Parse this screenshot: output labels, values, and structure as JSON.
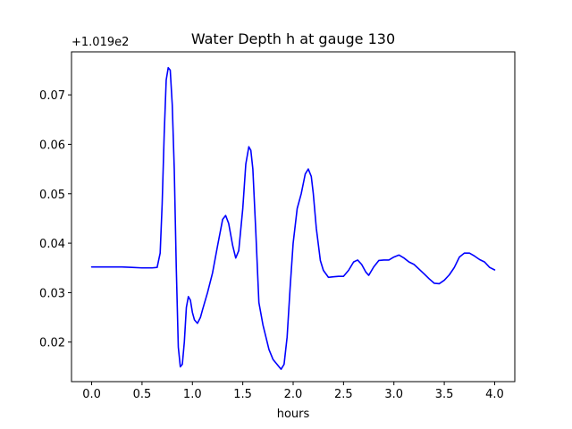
{
  "chart_data": {
    "type": "line",
    "title": "Water Depth h at gauge 130",
    "xlabel": "hours",
    "ylabel": "",
    "y_offset_label": "+1.019e2",
    "xlim": [
      -0.2,
      4.2
    ],
    "ylim": [
      0.012,
      0.0787
    ],
    "x_ticks": [
      0.0,
      0.5,
      1.0,
      1.5,
      2.0,
      2.5,
      3.0,
      3.5,
      4.0
    ],
    "x_tick_labels": [
      "0.0",
      "0.5",
      "1.0",
      "1.5",
      "2.0",
      "2.5",
      "3.0",
      "3.5",
      "4.0"
    ],
    "y_ticks": [
      0.02,
      0.03,
      0.04,
      0.05,
      0.06,
      0.07
    ],
    "y_tick_labels": [
      "0.02",
      "0.03",
      "0.04",
      "0.05",
      "0.06",
      "0.07"
    ],
    "grid": false,
    "series": [
      {
        "color": "#0000ff",
        "x": [
          0.0,
          0.1,
          0.2,
          0.3,
          0.4,
          0.5,
          0.6,
          0.65,
          0.68,
          0.7,
          0.72,
          0.74,
          0.76,
          0.78,
          0.8,
          0.82,
          0.84,
          0.86,
          0.88,
          0.9,
          0.92,
          0.94,
          0.96,
          0.98,
          1.0,
          1.02,
          1.05,
          1.08,
          1.1,
          1.15,
          1.2,
          1.25,
          1.3,
          1.33,
          1.36,
          1.4,
          1.43,
          1.46,
          1.5,
          1.53,
          1.56,
          1.58,
          1.6,
          1.63,
          1.66,
          1.7,
          1.73,
          1.76,
          1.8,
          1.84,
          1.88,
          1.91,
          1.94,
          1.97,
          2.0,
          2.04,
          2.08,
          2.12,
          2.15,
          2.18,
          2.2,
          2.23,
          2.27,
          2.3,
          2.35,
          2.4,
          2.45,
          2.5,
          2.55,
          2.6,
          2.64,
          2.68,
          2.72,
          2.75,
          2.8,
          2.85,
          2.9,
          2.95,
          3.0,
          3.05,
          3.1,
          3.15,
          3.2,
          3.3,
          3.35,
          3.4,
          3.45,
          3.5,
          3.55,
          3.6,
          3.65,
          3.7,
          3.75,
          3.8,
          3.85,
          3.9,
          3.95,
          4.0
        ],
        "y": [
          0.0352,
          0.0352,
          0.0352,
          0.0352,
          0.0351,
          0.035,
          0.035,
          0.0351,
          0.038,
          0.048,
          0.062,
          0.073,
          0.0755,
          0.075,
          0.068,
          0.055,
          0.035,
          0.019,
          0.015,
          0.0155,
          0.02,
          0.027,
          0.0292,
          0.0285,
          0.026,
          0.0245,
          0.0238,
          0.025,
          0.0265,
          0.03,
          0.034,
          0.0395,
          0.0448,
          0.0456,
          0.044,
          0.0395,
          0.037,
          0.0385,
          0.047,
          0.056,
          0.0595,
          0.0588,
          0.055,
          0.042,
          0.028,
          0.0235,
          0.021,
          0.0185,
          0.0165,
          0.0155,
          0.0145,
          0.0155,
          0.021,
          0.031,
          0.04,
          0.047,
          0.05,
          0.054,
          0.055,
          0.0535,
          0.05,
          0.043,
          0.0365,
          0.0345,
          0.0331,
          0.0332,
          0.0333,
          0.0333,
          0.0345,
          0.0362,
          0.0366,
          0.0357,
          0.0342,
          0.0335,
          0.0352,
          0.0365,
          0.0366,
          0.0366,
          0.0372,
          0.0376,
          0.037,
          0.0362,
          0.0357,
          0.0338,
          0.0328,
          0.0319,
          0.0318,
          0.0325,
          0.0336,
          0.0351,
          0.0372,
          0.038,
          0.038,
          0.0374,
          0.0367,
          0.0362,
          0.0351,
          0.0346
        ]
      }
    ]
  }
}
